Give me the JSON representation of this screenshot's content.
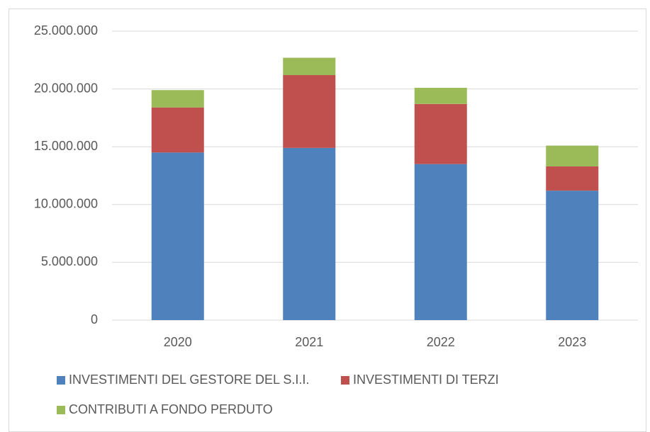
{
  "chart_data": {
    "type": "stacked_bar",
    "categories": [
      "2020",
      "2021",
      "2022",
      "2023"
    ],
    "series": [
      {
        "name": "INVESTIMENTI DEL GESTORE DEL S.I.I.",
        "color": "#4f81bd",
        "values": [
          14500000,
          14900000,
          13500000,
          11200000
        ]
      },
      {
        "name": "INVESTIMENTI DI TERZI",
        "color": "#c0504d",
        "values": [
          3900000,
          6300000,
          5200000,
          2100000
        ]
      },
      {
        "name": "CONTRIBUTI A FONDO PERDUTO",
        "color": "#9bbb59",
        "values": [
          1500000,
          1500000,
          1400000,
          1800000
        ]
      }
    ],
    "ylim": [
      0,
      25000000
    ],
    "yticks": [
      0,
      {
        "value": 5000000,
        "label": "5.000.000"
      },
      {
        "value": 10000000,
        "label": "10.000.000"
      },
      {
        "value": 15000000,
        "label": "15.000.000"
      },
      {
        "value": 20000000,
        "label": "20.000.000"
      },
      {
        "value": 25000000,
        "label": "25.000.000"
      }
    ],
    "grid": true,
    "legend": "bottom"
  }
}
